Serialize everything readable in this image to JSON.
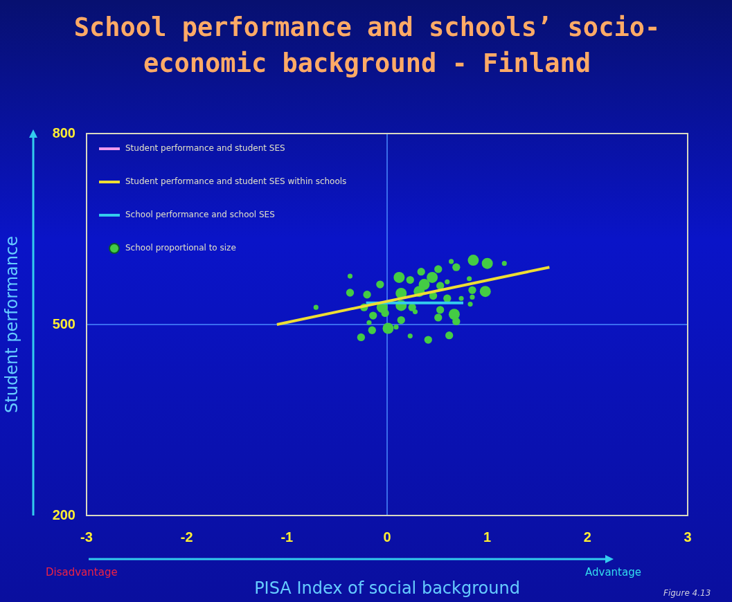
{
  "chart_data": {
    "type": "bubble",
    "title": "School performance and schools’ socio-economic background - Finland",
    "xlabel": "PISA Index of social background",
    "ylabel": "Student performance",
    "xlim": [
      -3,
      3
    ],
    "xticks": [
      -3,
      -2,
      -1,
      0,
      1,
      2,
      3
    ],
    "ylim": [
      200,
      800
    ],
    "yticks": [
      200,
      500,
      800
    ],
    "legend": "top left",
    "ref_lines": [
      {
        "axis": "x",
        "value": 0,
        "color": "#4a8cff"
      },
      {
        "axis": "y",
        "value": 500,
        "color": "#4a8cff"
      }
    ],
    "annotations": [
      "Disadvantage",
      "Advantage",
      "Figure 4.13"
    ],
    "series": [
      {
        "name": "Student performance and student SES",
        "type": "line",
        "color": "#ee99ee"
      },
      {
        "name": "Student performance and student SES within schools",
        "type": "line",
        "color": "#eedd33",
        "x": [
          -1.1,
          1.62
        ],
        "values": [
          500,
          590
        ]
      },
      {
        "name": "School performance and school SES",
        "type": "line",
        "color": "#33ccee",
        "x": [
          -0.21,
          0.76
        ],
        "values": [
          534,
          534
        ]
      },
      {
        "name": "School proportional to size",
        "color": "#44cc44",
        "x": [
          0.86,
          1.0,
          1.17,
          0.69,
          0.51,
          0.34,
          0.45,
          0.12,
          -0.07,
          0.23,
          0.37,
          0.53,
          0.6,
          0.82,
          0.98,
          0.85,
          -0.37,
          -0.2,
          0.14,
          0.32,
          0.46,
          0.6,
          0.74,
          0.85,
          -0.23,
          -0.05,
          0.14,
          0.25,
          0.53,
          0.83,
          -0.14,
          -0.02,
          0.14,
          0.28,
          0.51,
          0.67,
          0.69,
          -0.18,
          0.01,
          0.09,
          -0.15,
          -0.26,
          0.41,
          0.62,
          0.23,
          -0.71,
          -0.37,
          0.64
        ],
        "values": [
          601,
          596,
          596,
          590,
          587,
          583,
          574,
          574,
          563,
          570,
          563,
          561,
          567,
          572,
          552,
          554,
          550,
          547,
          549,
          552,
          545,
          541,
          541,
          543,
          527,
          527,
          530,
          527,
          523,
          532,
          514,
          518,
          507,
          520,
          511,
          516,
          505,
          503,
          494,
          496,
          491,
          480,
          476,
          483,
          482,
          527,
          576,
          599
        ],
        "sizes": [
          1,
          1,
          0.2,
          0.5,
          0.5,
          0.5,
          1,
          1,
          0.5,
          0.5,
          1,
          0.5,
          0.2,
          0.2,
          1,
          0.5,
          0.5,
          0.5,
          1,
          1,
          0.5,
          0.5,
          0.2,
          0.2,
          0.5,
          1,
          1,
          0.5,
          0.5,
          0.2,
          0.5,
          0.5,
          0.5,
          0.2,
          0.5,
          1,
          0.5,
          0.2,
          1,
          0.2,
          0.5,
          0.5,
          0.5,
          0.5,
          0.2,
          0.2,
          0.2,
          0.2
        ]
      }
    ]
  }
}
